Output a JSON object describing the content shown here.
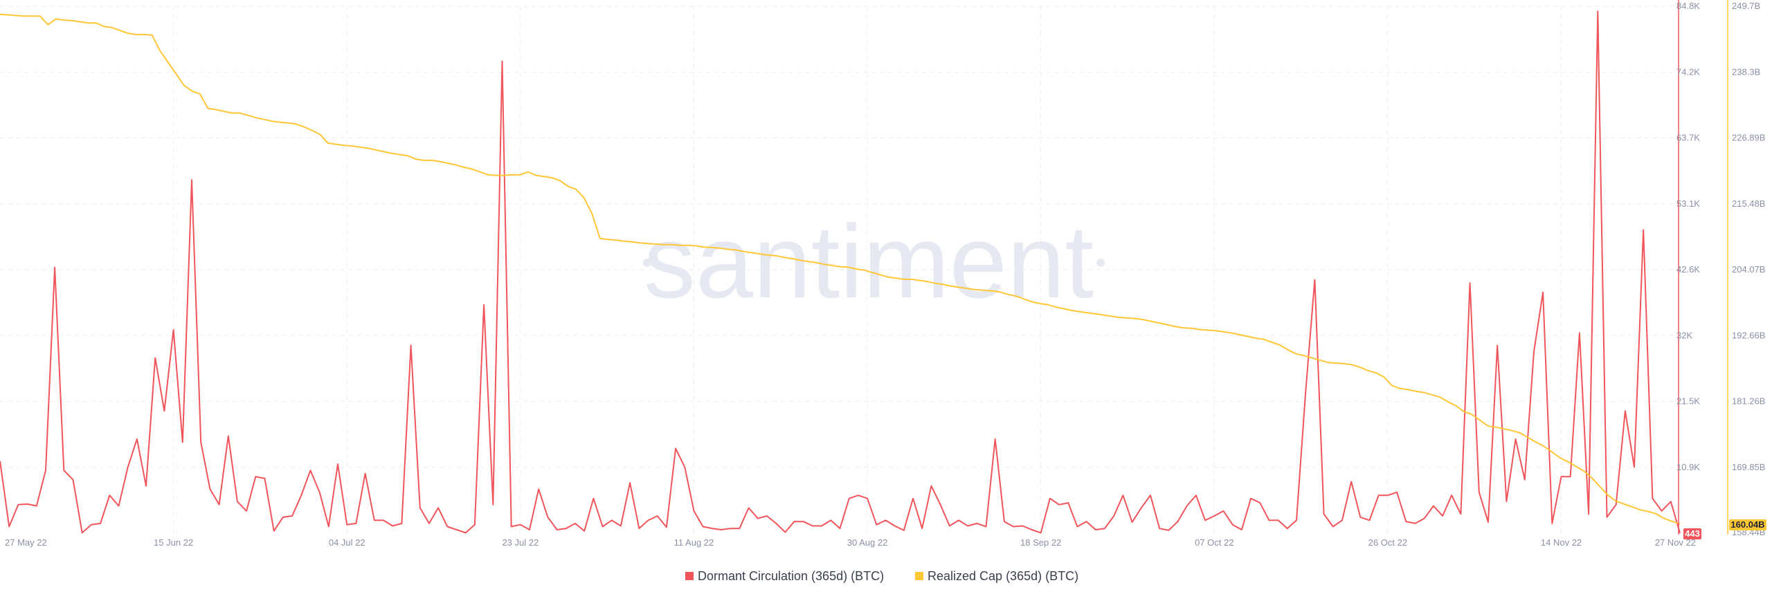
{
  "watermark": "santiment",
  "colors": {
    "series1": "#f0555b",
    "series2": "#ffc635",
    "grid": "#eceef3",
    "text": "#8a91a5"
  },
  "chart_data": {
    "type": "line",
    "x_tick_labels": [
      "27 May 22",
      "15 Jun 22",
      "04 Jul 22",
      "23 Jul 22",
      "11 Aug 22",
      "30 Aug 22",
      "18 Sep 22",
      "07 Oct 22",
      "26 Oct 22",
      "14 Nov 22",
      "27 Nov 22"
    ],
    "x_start": "2022-05-27",
    "x_end": "2022-11-27",
    "y_left": {
      "ticks": [
        "84.8K",
        "74.2K",
        "63.7K",
        "53.1K",
        "42.6K",
        "32K",
        "21.5K",
        "10.9K",
        "443"
      ],
      "range": [
        443,
        84800
      ],
      "current_value_label": "443"
    },
    "y_right": {
      "ticks": [
        "249.7B",
        "238.3B",
        "226.89B",
        "215.48B",
        "204.07B",
        "192.66B",
        "181.26B",
        "169.85B",
        "158.44B"
      ],
      "range": [
        158.44,
        249.7
      ],
      "current_value_label": "160.04B"
    },
    "legend_position": "bottom-center",
    "grid": true,
    "series": [
      {
        "name": "Dormant Circulation (365d) (BTC)",
        "axis": "left",
        "color": "#f0555b",
        "values": [
          12000,
          1500,
          5000,
          5100,
          4800,
          10500,
          43000,
          10500,
          9000,
          500,
          1800,
          2000,
          6500,
          4800,
          11000,
          15500,
          8000,
          28500,
          20000,
          33000,
          15000,
          57000,
          15000,
          7500,
          5000,
          16000,
          5500,
          4000,
          9500,
          9200,
          800,
          3000,
          3200,
          6500,
          10500,
          7000,
          1500,
          11500,
          1800,
          2000,
          10000,
          2500,
          2500,
          1600,
          2000,
          30500,
          4500,
          2000,
          4500,
          1500,
          1000,
          500,
          1800,
          37000,
          5000,
          76000,
          1500,
          1800,
          1000,
          7500,
          3000,
          1000,
          1200,
          2000,
          800,
          6000,
          1500,
          2500,
          1600,
          8500,
          1200,
          2500,
          3200,
          1400,
          14000,
          11000,
          4000,
          1500,
          1200,
          1000,
          1200,
          1200,
          4500,
          2800,
          3200,
          2000,
          600,
          2300,
          2300,
          1600,
          1600,
          2500,
          1200,
          6000,
          6500,
          6000,
          1800,
          2500,
          1600,
          900,
          6000,
          1200,
          8000,
          5000,
          1600,
          2500,
          1600,
          2000,
          1500,
          15500,
          2300,
          1500,
          1600,
          1000,
          500,
          6000,
          5000,
          5300,
          1500,
          2300,
          1000,
          1200,
          3200,
          6500,
          2200,
          4500,
          6500,
          1200,
          900,
          2300,
          4800,
          6500,
          2500,
          3200,
          4000,
          1800,
          1000,
          6000,
          5300,
          2500,
          2500,
          1200,
          2500,
          23000,
          41000,
          3500,
          1500,
          2500,
          8700,
          3000,
          2500,
          6500,
          6500,
          7000,
          2300,
          2000,
          2800,
          4800,
          3200,
          6500,
          3500,
          40500,
          7000,
          2200,
          30500,
          5500,
          15500,
          9000,
          29500,
          39000,
          2000,
          9500,
          9500,
          32500,
          3500,
          84000,
          3000,
          5000,
          20000,
          11000,
          49000,
          6000,
          4000,
          5500,
          443
        ]
      },
      {
        "name": "Realized Cap (365d) (BTC)",
        "axis": "right",
        "color": "#ffc635",
        "values": [
          248.3,
          248.2,
          248.1,
          248.0,
          248.0,
          248.0,
          246.5,
          247.5,
          247.3,
          247.2,
          247.0,
          246.8,
          246.8,
          246.2,
          246.0,
          245.5,
          245.0,
          244.8,
          244.8,
          244.7,
          242.0,
          240.0,
          238.0,
          236.0,
          235.0,
          234.5,
          232.0,
          231.8,
          231.5,
          231.2,
          231.2,
          230.8,
          230.4,
          230.1,
          229.8,
          229.6,
          229.5,
          229.3,
          228.8,
          228.2,
          227.5,
          226.0,
          225.8,
          225.6,
          225.5,
          225.3,
          225.1,
          224.8,
          224.5,
          224.2,
          224.0,
          223.8,
          223.2,
          223.0,
          223.0,
          222.8,
          222.5,
          222.2,
          221.8,
          221.5,
          221.0,
          220.5,
          220.4,
          220.4,
          220.5,
          220.5,
          221.0,
          220.4,
          220.2,
          220.0,
          219.5,
          218.5,
          218.0,
          216.5,
          213.8,
          209.5,
          209.3,
          209.2,
          209.0,
          208.9,
          208.7,
          208.6,
          208.5,
          208.4,
          208.4,
          208.3,
          208.3,
          208.2,
          208.0,
          207.9,
          207.8,
          207.6,
          207.5,
          207.2,
          207.0,
          206.8,
          206.6,
          206.5,
          206.2,
          206.0,
          205.7,
          205.5,
          205.3,
          205.0,
          204.8,
          204.6,
          204.5,
          204.2,
          204.0,
          203.6,
          203.2,
          202.8,
          202.6,
          202.4,
          202.4,
          202.2,
          202.0,
          201.7,
          201.5,
          201.2,
          201.0,
          200.8,
          200.6,
          200.5,
          200.4,
          200.2,
          199.8,
          199.5,
          199.0,
          198.5,
          198.2,
          198.0,
          197.6,
          197.3,
          197.0,
          196.8,
          196.6,
          196.4,
          196.2,
          196.0,
          195.8,
          195.7,
          195.6,
          195.4,
          195.1,
          194.8,
          194.5,
          194.2,
          194.0,
          193.9,
          193.7,
          193.6,
          193.5,
          193.3,
          193.1,
          192.8,
          192.5,
          192.2,
          192.0,
          191.5,
          191.0,
          190.2,
          189.5,
          189.2,
          188.8,
          188.4,
          188.0,
          187.9,
          187.8,
          187.6,
          187.2,
          186.6,
          186.2,
          185.5,
          184.0,
          183.5,
          183.3,
          183.0,
          182.8,
          182.4,
          182.0,
          181.2,
          180.5,
          179.5,
          179.0,
          178.0,
          177.0,
          176.8,
          176.5,
          176.2,
          175.8,
          175.0,
          174.2,
          173.5,
          172.5,
          171.5,
          170.8,
          170.0,
          169.2,
          168.0,
          166.5,
          165.0,
          164.0,
          163.5,
          163.0,
          162.5,
          162.2,
          161.8,
          161.0,
          160.5,
          160.04
        ]
      }
    ]
  }
}
